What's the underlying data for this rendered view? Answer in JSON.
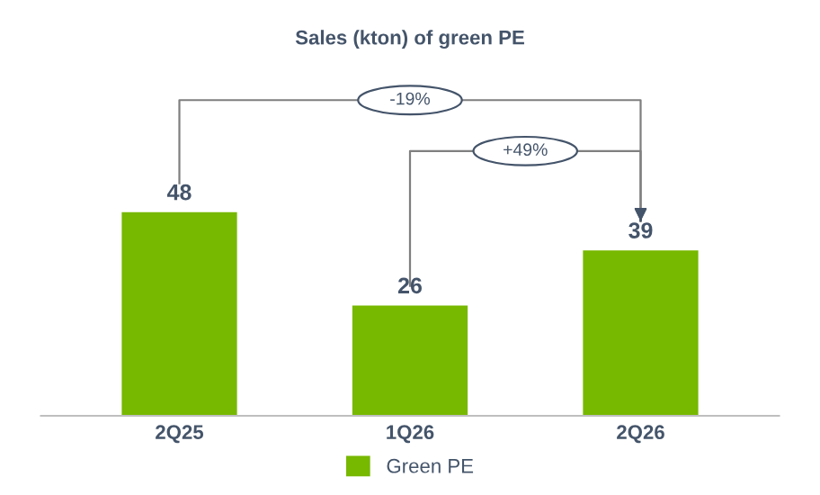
{
  "chart_data": {
    "type": "bar",
    "title": "Sales (kton) of green PE",
    "categories": [
      "2Q25",
      "1Q26",
      "2Q26"
    ],
    "series": [
      {
        "name": "Green PE",
        "color": "#77b800",
        "values": [
          48,
          26,
          39
        ]
      }
    ],
    "data_labels": true,
    "legend": "bottom",
    "grid": false,
    "annotations": [
      "-19%",
      "+49%"
    ]
  }
}
